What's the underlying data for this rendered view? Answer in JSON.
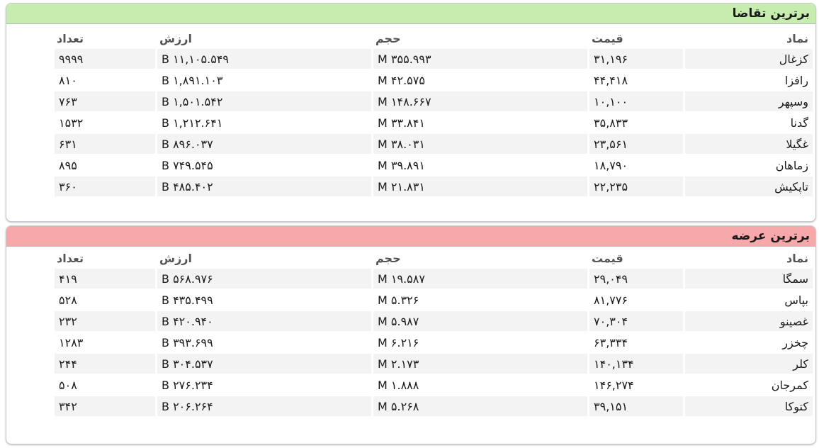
{
  "demand": {
    "title": "برترین تقاضا",
    "columns": {
      "symbol": "نماد",
      "price": "قیمت",
      "volume": "حجم",
      "value": "ارزش",
      "count": "تعداد"
    },
    "rows": [
      {
        "symbol": "کزغال",
        "price": "۳۱,۱۹۶",
        "volume": "۳۵۵.۹۹۳ M",
        "value": "۱۱,۱۰۵.۵۴۹ B",
        "count": "۹۹۹۹"
      },
      {
        "symbol": "رافزا",
        "price": "۴۴,۴۱۸",
        "volume": "۴۲.۵۷۵ M",
        "value": "۱,۸۹۱.۱۰۳ B",
        "count": "۸۱۰"
      },
      {
        "symbol": "وسپهر",
        "price": "۱۰,۱۰۰",
        "volume": "۱۴۸.۶۶۷ M",
        "value": "۱,۵۰۱.۵۴۲ B",
        "count": "۷۶۳"
      },
      {
        "symbol": "گدنا",
        "price": "۳۵,۸۳۳",
        "volume": "۳۳.۸۴۱ M",
        "value": "۱,۲۱۲.۶۴۱ B",
        "count": "۱۵۳۲"
      },
      {
        "symbol": "غگیلا",
        "price": "۲۳,۵۶۱",
        "volume": "۳۸.۰۳۱ M",
        "value": "۸۹۶.۰۳۷ B",
        "count": "۶۳۱"
      },
      {
        "symbol": "زماهان",
        "price": "۱۸,۷۹۰",
        "volume": "۳۹.۸۹۱ M",
        "value": "۷۴۹.۵۴۵ B",
        "count": "۸۹۵"
      },
      {
        "symbol": "تاپکیش",
        "price": "۲۲,۲۳۵",
        "volume": "۲۱.۸۳۱ M",
        "value": "۴۸۵.۴۰۲ B",
        "count": "۳۶۰"
      }
    ]
  },
  "supply": {
    "title": "برترین عرضه",
    "columns": {
      "symbol": "نماد",
      "price": "قیمت",
      "volume": "حجم",
      "value": "ارزش",
      "count": "تعداد"
    },
    "rows": [
      {
        "symbol": "سمگا",
        "price": "۲۹,۰۴۹",
        "volume": "۱۹.۵۸۷ M",
        "value": "۵۶۸.۹۷۶ B",
        "count": "۴۱۹"
      },
      {
        "symbol": "بپاس",
        "price": "۸۱,۷۷۶",
        "volume": "۵.۳۲۶ M",
        "value": "۴۳۵.۴۹۹ B",
        "count": "۵۲۸"
      },
      {
        "symbol": "غصینو",
        "price": "۷۰,۳۰۴",
        "volume": "۵.۹۸۷ M",
        "value": "۴۲۰.۹۴۰ B",
        "count": "۲۳۲"
      },
      {
        "symbol": "چخزر",
        "price": "۶۳,۳۳۴",
        "volume": "۶.۲۱۶ M",
        "value": "۳۹۳.۶۹۹ B",
        "count": "۱۲۸۳"
      },
      {
        "symbol": "کلر",
        "price": "۱۴۰,۱۳۴",
        "volume": "۲.۱۷۳ M",
        "value": "۳۰۴.۵۳۷ B",
        "count": "۲۴۴"
      },
      {
        "symbol": "کمرجان",
        "price": "۱۴۶,۲۷۴",
        "volume": "۱.۸۸۸ M",
        "value": "۲۷۶.۲۳۴ B",
        "count": "۵۰۸"
      },
      {
        "symbol": "کتوکا",
        "price": "۳۹,۱۵۱",
        "volume": "۵.۲۶۸ M",
        "value": "۲۰۶.۲۶۴ B",
        "count": "۳۴۲"
      }
    ]
  },
  "colors": {
    "demand_header": "#c6ecb0",
    "supply_header": "#f7a8ab",
    "row_stripe": "#f3f3f3"
  }
}
